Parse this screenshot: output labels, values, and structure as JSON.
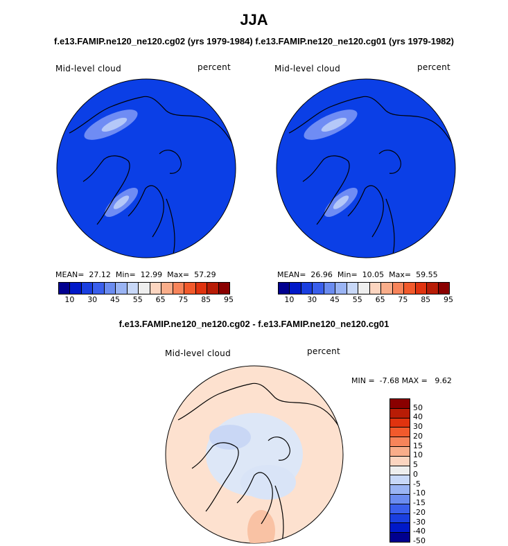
{
  "title": "JJA",
  "pair_title": "f.e13.FAMIP.ne120_ne120.cg02 (yrs 1979-1984) f.e13.FAMIP.ne120_ne120.cg01 (yrs 1979-1982)",
  "diff_title": "f.e13.FAMIP.ne120_ne120.cg02 - f.e13.FAMIP.ne120_ne120.cg01",
  "colors": {
    "abs_scale": [
      "#00008f",
      "#0019c8",
      "#1a3fe0",
      "#3a5fec",
      "#6b8cf0",
      "#9ab4f4",
      "#c8d8f8",
      "#eeeeee",
      "#fcd5c0",
      "#f9ad8a",
      "#f7845a",
      "#f25a2c",
      "#e0330f",
      "#b81c06",
      "#8a0000"
    ],
    "diff_scale": [
      "#8a0000",
      "#b81c06",
      "#e0330f",
      "#f25a2c",
      "#f7845a",
      "#f9ad8a",
      "#fcd5c0",
      "#eeeeee",
      "#c8d8f8",
      "#9ab4f4",
      "#6b8cf0",
      "#3a5fec",
      "#1a3fe0",
      "#0019c8",
      "#00008f"
    ],
    "main_fill": "#0b3fe6",
    "diff_fill": "#fde1cf"
  },
  "panels": [
    {
      "variable": "Mid-level cloud",
      "units": "percent",
      "stats": {
        "mean_label": "MEAN=",
        "mean": "27.12",
        "min_label": "Min=",
        "min": "12.99",
        "max_label": "Max=",
        "max": "57.29"
      }
    },
    {
      "variable": "Mid-level cloud",
      "units": "percent",
      "stats": {
        "mean_label": "MEAN=",
        "mean": "26.96",
        "min_label": "Min=",
        "min": "10.05",
        "max_label": "Max=",
        "max": "59.55"
      }
    }
  ],
  "abs_ticks": [
    "10",
    "30",
    "45",
    "55",
    "65",
    "75",
    "85",
    "95"
  ],
  "diff_panel": {
    "variable": "Mid-level cloud",
    "units": "percent",
    "stats": "MIN =  -7.68 MAX =   9.62",
    "ticks": [
      "50",
      "40",
      "30",
      "20",
      "15",
      "10",
      "5",
      "0",
      "-5",
      "-10",
      "-15",
      "-20",
      "-30",
      "-40",
      "-50"
    ]
  },
  "chart_data": [
    {
      "type": "heatmap",
      "title": "Mid-level cloud",
      "units": "percent",
      "mean": 27.12,
      "min": 12.99,
      "max": 57.29,
      "colorbar_ticks": [
        10,
        30,
        45,
        55,
        65,
        75,
        85,
        95
      ]
    },
    {
      "type": "heatmap",
      "title": "Mid-level cloud",
      "units": "percent",
      "mean": 26.96,
      "min": 10.05,
      "max": 59.55,
      "colorbar_ticks": [
        10,
        30,
        45,
        55,
        65,
        75,
        85,
        95
      ]
    },
    {
      "type": "heatmap",
      "title": "Mid-level cloud",
      "units": "percent",
      "min": -7.68,
      "max": 9.62,
      "colorbar_ticks": [
        50,
        40,
        30,
        20,
        15,
        10,
        5,
        0,
        -5,
        -10,
        -15,
        -20,
        -30,
        -40,
        -50
      ]
    }
  ]
}
